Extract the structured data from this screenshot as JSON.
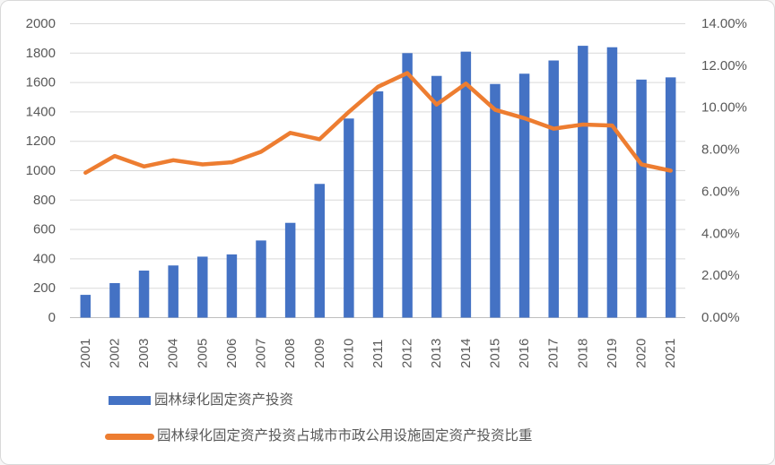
{
  "colors": {
    "bar": "#4472C4",
    "line": "#ED7D31",
    "grid": "#D9D9D9",
    "axis_line": "#BFBFBF",
    "text": "#595959",
    "border": "#D9D9D9",
    "background": "#FFFFFF"
  },
  "legend": {
    "bar_label": "园林绿化固定资产投资",
    "line_label": "园林绿化固定资产投资占城市市政公用设施固定资产投资比重"
  },
  "chart_data": {
    "type": "bar",
    "combo_with_line": true,
    "title": "",
    "xlabel": "",
    "ylabel": "",
    "grid": true,
    "legend_position": "bottom-left",
    "categories": [
      "2001",
      "2002",
      "2003",
      "2004",
      "2005",
      "2006",
      "2007",
      "2008",
      "2009",
      "2010",
      "2011",
      "2012",
      "2013",
      "2014",
      "2015",
      "2016",
      "2017",
      "2018",
      "2019",
      "2020",
      "2021"
    ],
    "series": [
      {
        "name": "园林绿化固定资产投资",
        "type": "bar",
        "axis": "left",
        "values": [
          155,
          235,
          320,
          355,
          415,
          430,
          525,
          645,
          910,
          1355,
          1540,
          1800,
          1645,
          1810,
          1590,
          1660,
          1750,
          1850,
          1840,
          1620,
          1635
        ]
      },
      {
        "name": "园林绿化固定资产投资占城市市政公用设施固定资产投资比重",
        "type": "line",
        "axis": "right",
        "unit": "%",
        "values": [
          6.9,
          7.7,
          7.2,
          7.5,
          7.3,
          7.4,
          7.9,
          8.8,
          8.5,
          9.8,
          11.0,
          11.65,
          10.15,
          11.15,
          9.9,
          9.5,
          9.0,
          9.2,
          9.15,
          7.3,
          7.0
        ]
      }
    ],
    "left_axis": {
      "min": 0,
      "max": 2000,
      "step": 200,
      "tick_labels": [
        "0",
        "200",
        "400",
        "600",
        "800",
        "1000",
        "1200",
        "1400",
        "1600",
        "1800",
        "2000"
      ]
    },
    "right_axis": {
      "min": 0,
      "max": 14,
      "step": 2,
      "tick_labels": [
        "0.00%",
        "2.00%",
        "4.00%",
        "6.00%",
        "8.00%",
        "10.00%",
        "12.00%",
        "14.00%"
      ]
    }
  }
}
